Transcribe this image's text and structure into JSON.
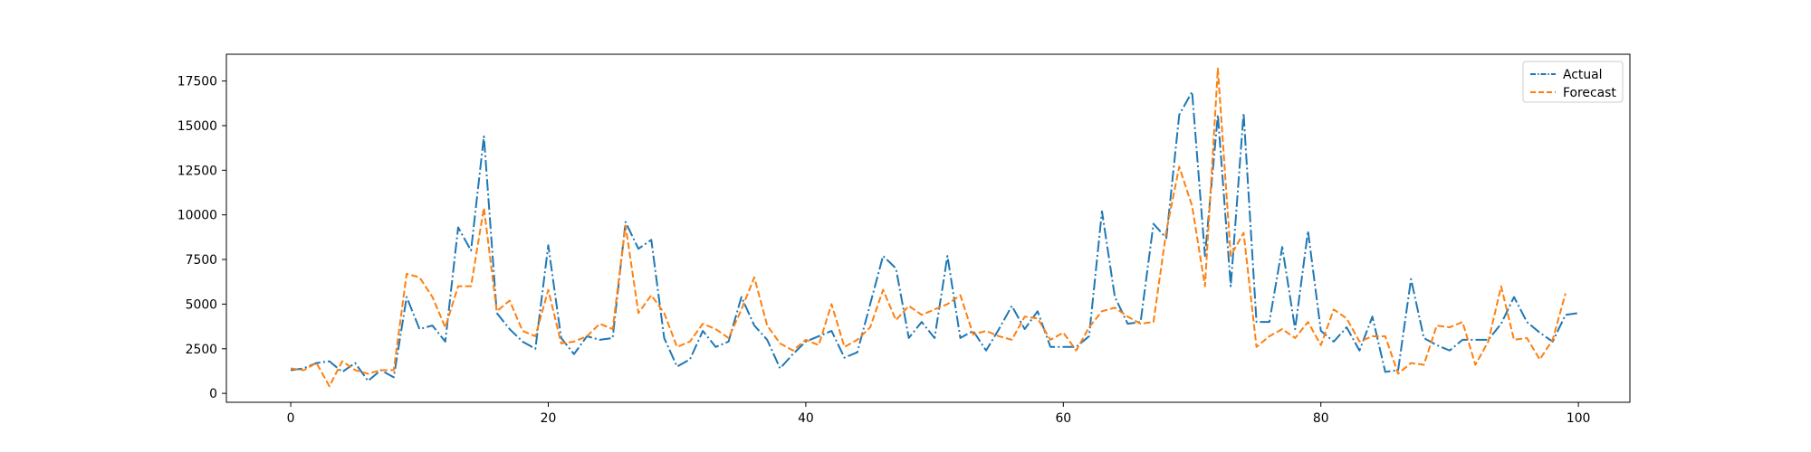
{
  "chart_data": {
    "type": "line",
    "title": "",
    "xlabel": "",
    "ylabel": "",
    "xlim": [
      -5,
      104
    ],
    "ylim": [
      -500,
      19000
    ],
    "x_ticks": [
      0,
      20,
      40,
      60,
      80,
      100
    ],
    "y_ticks": [
      0,
      2500,
      5000,
      7500,
      10000,
      12500,
      15000,
      17500
    ],
    "grid": false,
    "legend_position": "upper right",
    "series": [
      {
        "name": "Actual",
        "color": "#1f77b4",
        "linestyle": "dashdot",
        "values": [
          1300,
          1400,
          1700,
          1800,
          1200,
          1700,
          700,
          1300,
          900,
          5400,
          3600,
          3800,
          2900,
          9300,
          8000,
          14400,
          4500,
          3600,
          2900,
          2500,
          8300,
          3100,
          2200,
          3200,
          3000,
          3100,
          9600,
          8100,
          8600,
          3100,
          1500,
          1900,
          3500,
          2600,
          2900,
          5400,
          3800,
          3000,
          1400,
          2200,
          2900,
          3200,
          3500,
          2000,
          2300,
          5000,
          7700,
          7000,
          3100,
          4000,
          3100,
          7700,
          3100,
          3500,
          2400,
          3600,
          4900,
          3600,
          4600,
          2600,
          2600,
          2600,
          3200,
          10200,
          5400,
          3900,
          4000,
          9500,
          8700,
          15600,
          16900,
          7700,
          15600,
          6000,
          15700,
          4000,
          4000,
          8200,
          3600,
          9100,
          3500,
          2900,
          3700,
          2400,
          4300,
          1200,
          1300,
          6400,
          3100,
          2700,
          2400,
          3000,
          3000,
          3000,
          3900,
          5400,
          4000,
          3400,
          2900,
          4400,
          4500
        ]
      },
      {
        "name": "Forecast",
        "color": "#ff7f0e",
        "linestyle": "dashed",
        "values": [
          1400,
          1300,
          1700,
          400,
          1800,
          1300,
          1100,
          1300,
          1300,
          6700,
          6500,
          5400,
          3700,
          6000,
          6000,
          10400,
          4600,
          5200,
          3500,
          3200,
          5800,
          2800,
          2900,
          3200,
          3900,
          3600,
          9400,
          4500,
          5500,
          4500,
          2600,
          2900,
          3900,
          3600,
          3100,
          4700,
          6500,
          3800,
          2800,
          2400,
          3000,
          2700,
          5000,
          2600,
          3000,
          3700,
          5800,
          4100,
          4900,
          4400,
          4700,
          5000,
          5500,
          3300,
          3500,
          3200,
          3000,
          4300,
          4200,
          3000,
          3400,
          2400,
          3700,
          4600,
          4800,
          4300,
          3900,
          4000,
          9100,
          12700,
          10500,
          6000,
          18200,
          7700,
          9000,
          2600,
          3200,
          3600,
          3100,
          4000,
          2700,
          4700,
          4200,
          2900,
          3200,
          3200,
          1100,
          1700,
          1600,
          3800,
          3700,
          4000,
          1600,
          2900,
          6000,
          3000,
          3100,
          1900,
          3000,
          5600
        ]
      }
    ]
  }
}
